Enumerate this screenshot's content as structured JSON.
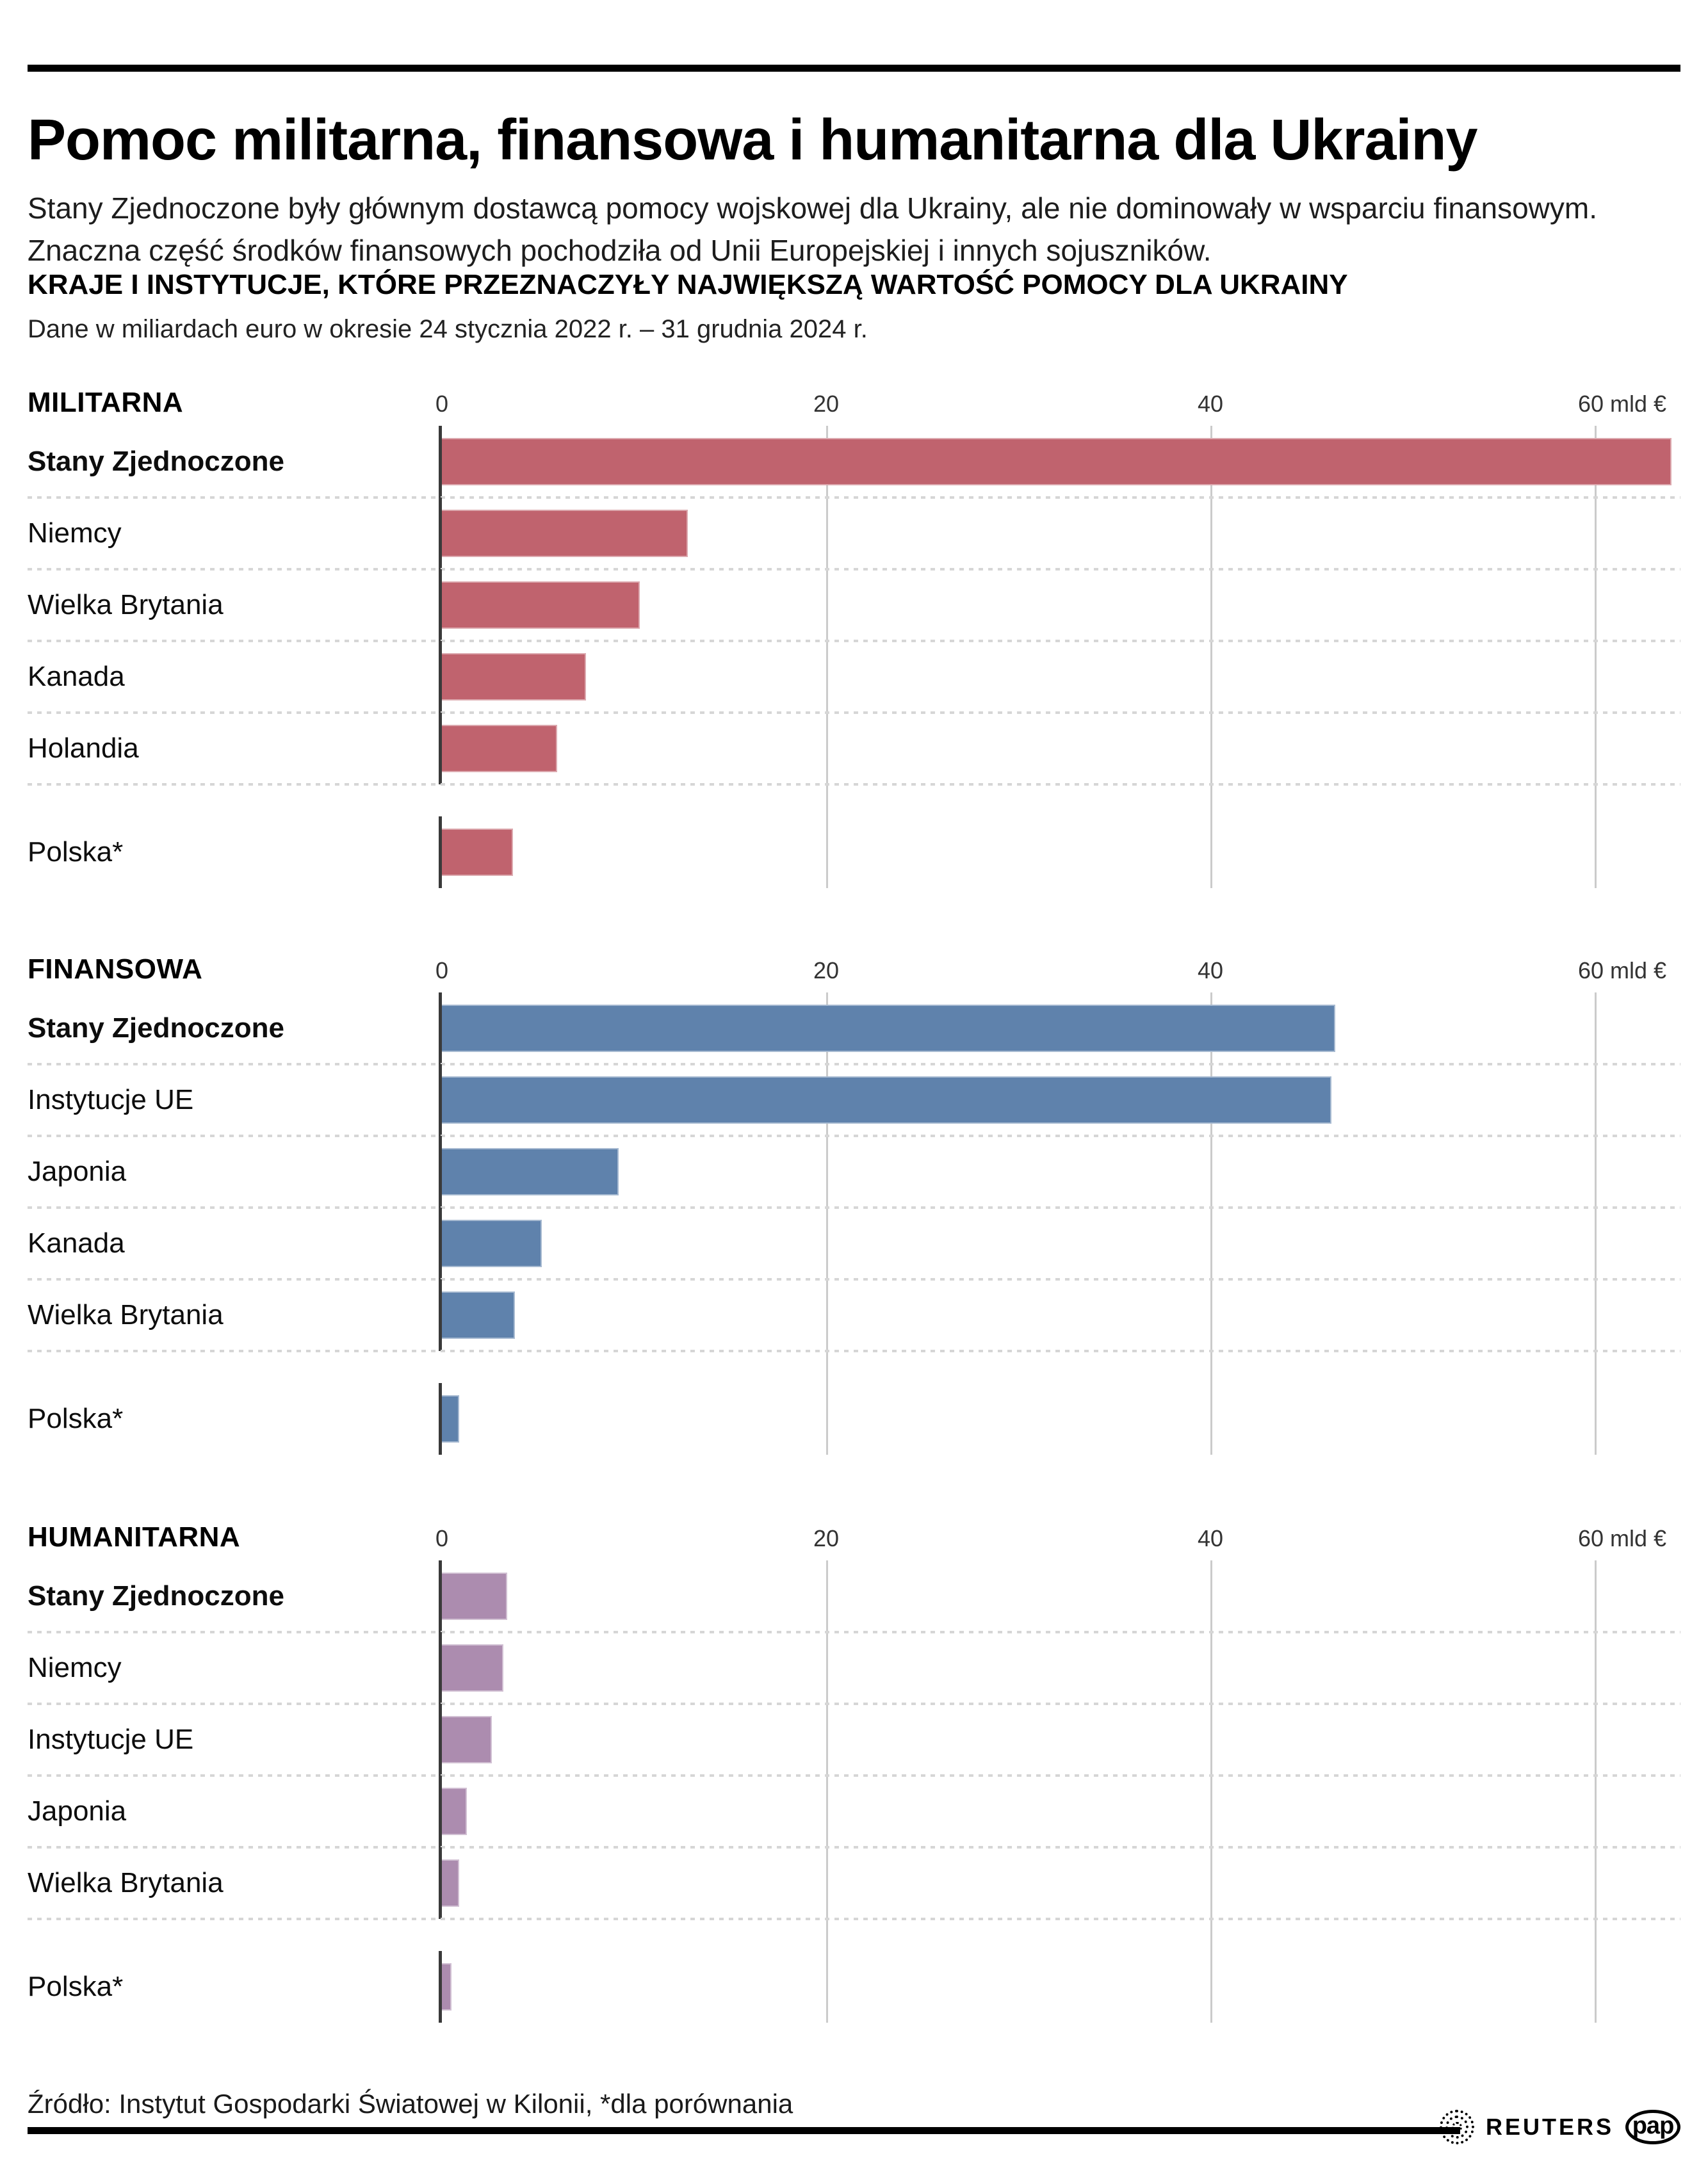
{
  "header": {
    "title": "Pomoc militarna, finansowa i humanitarna dla Ukrainy",
    "subtitle": "Stany Zjednoczone były głównym dostawcą pomocy wojskowej dla Ukrainy, ale nie dominowały w wsparciu finansowym. Znaczna część środków finansowych pochodziła od Unii Europejskiej i innych sojuszników.",
    "kicker": "KRAJE I INSTYTUCJE, KTÓRE PRZEZNACZYŁY NAJWIĘKSZĄ WARTOŚĆ POMOCY DLA UKRAINY",
    "note": "Dane w miliardach euro w okresie 24 stycznia 2022 r. – 31 grudnia 2024 r."
  },
  "chart_data": [
    {
      "type": "bar",
      "section": "MILITARNA",
      "unit": "mld €",
      "color": "#c0636e",
      "xlim": [
        0,
        60
      ],
      "grid": "on",
      "ticks": [
        "0",
        "20",
        "40",
        "60 mld €"
      ],
      "categories": [
        "Stany Zjednoczone",
        "Niemcy",
        "Wielka Brytania",
        "Kanada",
        "Holandia",
        "Polska*"
      ],
      "values": [
        64.0,
        12.8,
        10.3,
        7.5,
        6.0,
        3.7
      ]
    },
    {
      "type": "bar",
      "section": "FINANSOWA",
      "unit": "mld €",
      "color": "#5f82ac",
      "xlim": [
        0,
        60
      ],
      "grid": "on",
      "ticks": [
        "0",
        "20",
        "40",
        "60 mld €"
      ],
      "categories": [
        "Stany Zjednoczone",
        "Instytucje UE",
        "Japonia",
        "Kanada",
        "Wielka Brytania",
        "Polska*"
      ],
      "values": [
        46.5,
        46.3,
        9.2,
        5.2,
        3.8,
        0.9
      ]
    },
    {
      "type": "bar",
      "section": "HUMANITARNA",
      "unit": "mld €",
      "color": "#ac8caf",
      "xlim": [
        0,
        60
      ],
      "grid": "on",
      "ticks": [
        "0",
        "20",
        "40",
        "60 mld €"
      ],
      "categories": [
        "Stany Zjednoczone",
        "Niemcy",
        "Instytucje UE",
        "Japonia",
        "Wielka Brytania",
        "Polska*"
      ],
      "values": [
        3.4,
        3.2,
        2.6,
        1.3,
        0.9,
        0.5
      ]
    }
  ],
  "footer": {
    "source": "Źródło: Instytut Gospodarki Światowej w Kilonii, *dla porównania",
    "reuters": "REUTERS",
    "pap": "pap"
  }
}
